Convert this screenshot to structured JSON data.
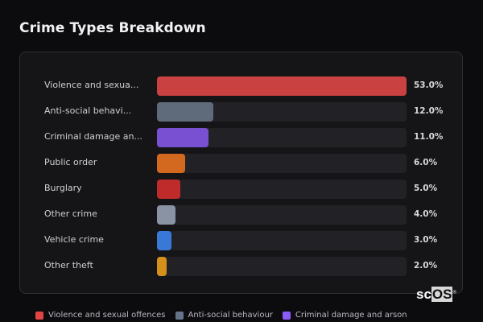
{
  "title": "Crime Types Breakdown",
  "logo": {
    "text_a": "sc",
    "text_b": "OS",
    "mark": "®"
  },
  "chart_data": {
    "type": "bar",
    "orientation": "horizontal",
    "title": "Crime Types Breakdown",
    "max": 53,
    "categories": [
      "Violence and sexua...",
      "Anti-social behavi...",
      "Criminal damage an...",
      "Public order",
      "Burglary",
      "Other crime",
      "Vehicle crime",
      "Other theft"
    ],
    "values": [
      53.0,
      12.0,
      11.0,
      6.0,
      5.0,
      4.0,
      3.0,
      2.0
    ],
    "value_labels": [
      "53.0%",
      "12.0%",
      "11.0%",
      "6.0%",
      "5.0%",
      "4.0%",
      "3.0%",
      "2.0%"
    ],
    "colors": [
      "#c94141",
      "#5f6b7b",
      "#7a50d2",
      "#d2691f",
      "#bf2b2b",
      "#8a93a3",
      "#3a78d8",
      "#d4901a"
    ],
    "legend": [
      {
        "label": "Violence and sexual offences",
        "color": "#e04444"
      },
      {
        "label": "Anti-social behaviour",
        "color": "#64748b"
      },
      {
        "label": "Criminal damage and arson",
        "color": "#8b5cf6"
      }
    ],
    "legend_position": "bottom"
  }
}
